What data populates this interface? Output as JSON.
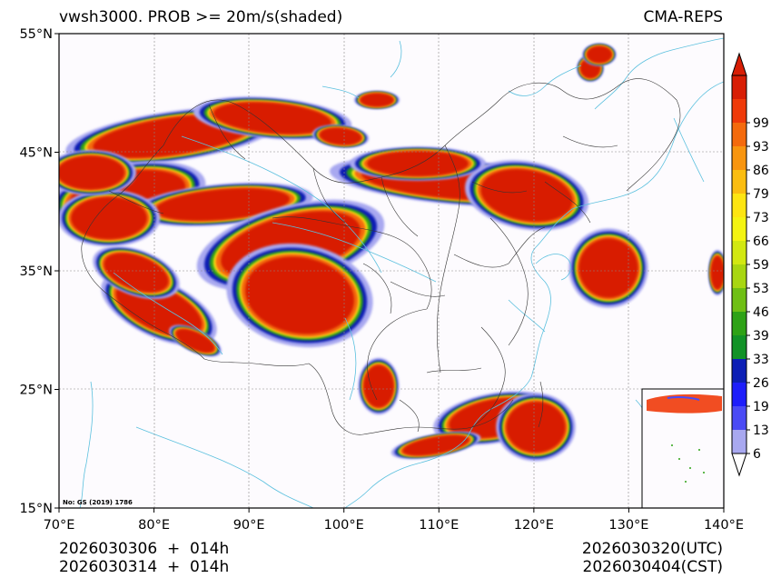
{
  "title": {
    "left": "vwsh3000. PROB >= 20m/s(shaded)",
    "right": "CMA-REPS"
  },
  "axes": {
    "x_ticks": [
      "70°E",
      "80°E",
      "90°E",
      "100°E",
      "110°E",
      "120°E",
      "130°E",
      "140°E"
    ],
    "y_ticks": [
      "55°N",
      "45°N",
      "35°N",
      "25°N",
      "15°N"
    ],
    "lon_range": [
      70,
      140
    ],
    "lat_range": [
      15,
      55
    ]
  },
  "colorbar": {
    "labels": [
      "99",
      "93",
      "86",
      "79",
      "73",
      "66",
      "59",
      "53",
      "46",
      "39",
      "33",
      "26",
      "19",
      "13",
      "6"
    ],
    "colors": [
      "#d81e05",
      "#ef3a0a",
      "#f46a0d",
      "#f8950f",
      "#fbbd10",
      "#fde512",
      "#f4f412",
      "#d2e812",
      "#a8d612",
      "#6fbf14",
      "#2ea216",
      "#129227",
      "#0d1fb5",
      "#1e1efa",
      "#4b4bf5",
      "#a8a8f0"
    ],
    "top_arrow_color": "#d81e05",
    "bottom_arrow_color": "#ffffff"
  },
  "map": {
    "water_color": "#5bc0de",
    "background": "#fdfbfe",
    "watermark": "No: GS (2019) 1786"
  },
  "footer": {
    "init_line1": "2026030306  +  014h",
    "init_line2": "2026030314  +  014h",
    "valid_utc": "2026030320(UTC)",
    "valid_cst": "2026030404(CST)"
  }
}
